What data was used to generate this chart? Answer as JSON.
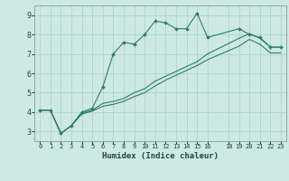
{
  "xlabel": "Humidex (Indice chaleur)",
  "ylabel": "",
  "bg_color": "#cde8e5",
  "grid_color": "#aed4d0",
  "line_color": "#2e7d6e",
  "xlim": [
    -0.5,
    23.5
  ],
  "ylim": [
    2.5,
    9.5
  ],
  "xticks": [
    0,
    1,
    2,
    3,
    4,
    5,
    6,
    7,
    8,
    9,
    10,
    11,
    12,
    13,
    14,
    15,
    16,
    18,
    19,
    20,
    21,
    22,
    23
  ],
  "yticks": [
    3,
    4,
    5,
    6,
    7,
    8,
    9
  ],
  "line1_x": [
    0,
    1,
    2,
    3,
    4,
    5,
    6,
    7,
    8,
    9,
    10,
    11,
    12,
    13,
    14,
    15,
    16,
    19,
    20,
    21,
    22,
    23
  ],
  "line1_y": [
    4.1,
    4.1,
    2.9,
    3.3,
    4.0,
    4.2,
    5.3,
    7.0,
    7.6,
    7.5,
    8.0,
    8.7,
    8.6,
    8.3,
    8.3,
    9.1,
    7.85,
    8.3,
    8.0,
    7.85,
    7.35,
    7.35
  ],
  "line2_x": [
    0,
    1,
    2,
    3,
    4,
    5,
    6,
    7,
    8,
    9,
    10,
    11,
    12,
    13,
    14,
    15,
    16,
    19,
    20,
    21,
    22,
    23
  ],
  "line2_y": [
    4.1,
    4.1,
    2.9,
    3.3,
    3.95,
    4.1,
    4.45,
    4.55,
    4.7,
    5.0,
    5.2,
    5.6,
    5.85,
    6.1,
    6.35,
    6.6,
    7.0,
    7.8,
    8.05,
    7.8,
    7.35,
    7.35
  ],
  "line3_x": [
    0,
    1,
    2,
    3,
    4,
    5,
    6,
    7,
    8,
    9,
    10,
    11,
    12,
    13,
    14,
    15,
    16,
    19,
    20,
    21,
    22,
    23
  ],
  "line3_y": [
    4.1,
    4.1,
    2.9,
    3.3,
    3.9,
    4.05,
    4.3,
    4.4,
    4.55,
    4.8,
    5.0,
    5.35,
    5.65,
    5.9,
    6.15,
    6.4,
    6.7,
    7.4,
    7.75,
    7.5,
    7.05,
    7.05
  ],
  "figsize": [
    3.2,
    2.0
  ],
  "dpi": 100
}
